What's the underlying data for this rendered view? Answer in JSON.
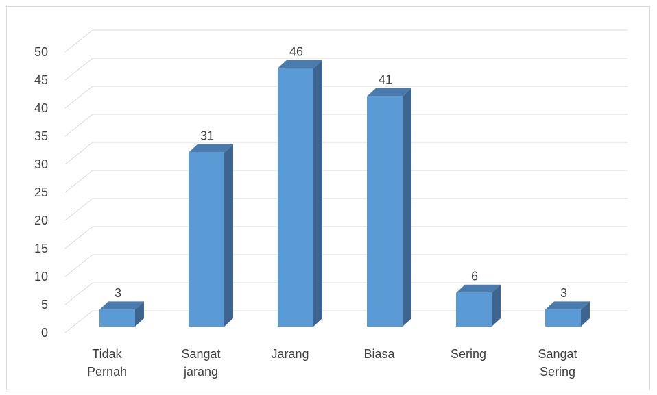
{
  "chart_data": {
    "type": "bar3d",
    "categories": [
      "Tidak Pernah",
      "Sangat jarang",
      "Jarang",
      "Biasa",
      "Sering",
      "Sangat Sering"
    ],
    "values": [
      3,
      31,
      46,
      41,
      6,
      3
    ],
    "color": "#5b9bd5",
    "ylim": [
      0,
      50
    ],
    "yticks": [
      0,
      5,
      10,
      15,
      20,
      25,
      30,
      35,
      40,
      45,
      50
    ],
    "grid": true
  }
}
